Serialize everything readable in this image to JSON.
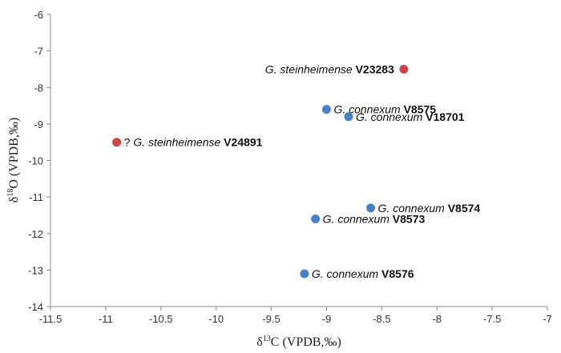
{
  "chart_data": {
    "type": "scatter",
    "title": "",
    "xlabel": {
      "prefix": "δ",
      "sup": "13",
      "rest": "C (VPDB,‰)"
    },
    "ylabel": {
      "prefix": "δ",
      "sup": "18",
      "rest": "O (VPDB,‰)"
    },
    "xlim": [
      -11.5,
      -7
    ],
    "ylim": [
      -14,
      -6
    ],
    "xticks": [
      "-11.5",
      "-11",
      "-10.5",
      "-10",
      "-9.5",
      "-9",
      "-8.5",
      "-8",
      "-7.5",
      "-7"
    ],
    "yticks": [
      "-14",
      "-13",
      "-12",
      "-11",
      "-10",
      "-9",
      "-8",
      "-7",
      "-6"
    ],
    "grid": false,
    "colors": {
      "steinheimense": "#c9484a",
      "connexum": "#4a80c8"
    },
    "points": [
      {
        "x": -8.3,
        "y": -7.5,
        "group": "steinheimense",
        "prefix": "",
        "species": "G. steinheimense",
        "specimen": "V23283"
      },
      {
        "x": -10.9,
        "y": -9.5,
        "group": "steinheimense",
        "prefix": "? ",
        "species": "G. steinheimense",
        "specimen": "V24891"
      },
      {
        "x": -9.0,
        "y": -8.6,
        "group": "connexum",
        "prefix": "",
        "species": "G. connexum",
        "specimen": "V8575"
      },
      {
        "x": -8.8,
        "y": -8.8,
        "group": "connexum",
        "prefix": "",
        "species": "G. connexum",
        "specimen": "V18701"
      },
      {
        "x": -8.6,
        "y": -11.3,
        "group": "connexum",
        "prefix": "",
        "species": "G. connexum",
        "specimen": "V8574"
      },
      {
        "x": -9.1,
        "y": -11.6,
        "group": "connexum",
        "prefix": "",
        "species": "G. connexum",
        "specimen": "V8573"
      },
      {
        "x": -9.2,
        "y": -13.1,
        "group": "connexum",
        "prefix": "",
        "species": "G. connexum",
        "specimen": "V8576"
      }
    ]
  }
}
